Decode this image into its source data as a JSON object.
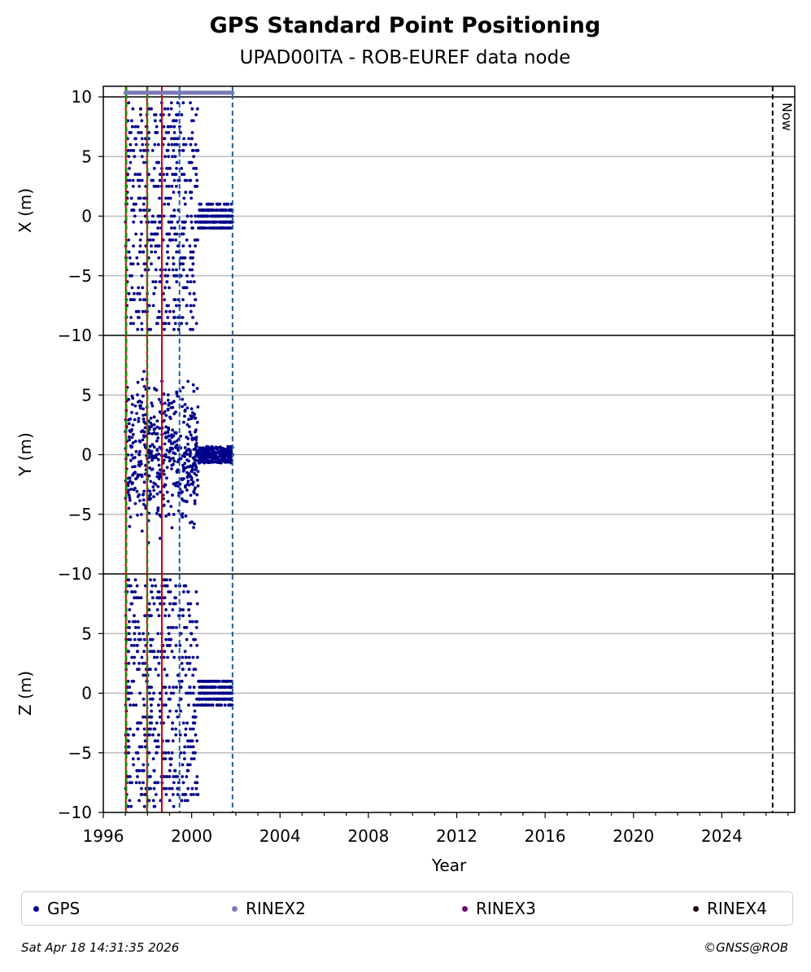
{
  "chart_data": {
    "type": "scatter",
    "title": "GPS Standard Point Positioning",
    "subtitle": "UPAD00ITA - ROB-EUREF data node",
    "xlabel": "Year",
    "xlim": [
      1996,
      2027.3
    ],
    "xticks": [
      1996,
      2000,
      2004,
      2008,
      2012,
      2016,
      2020,
      2024
    ],
    "panels": [
      {
        "name": "X",
        "ylabel": "X (m)",
        "ylim": [
          -10,
          10
        ],
        "yticks": [
          -10,
          -5,
          0,
          5,
          10
        ]
      },
      {
        "name": "Y",
        "ylabel": "Y (m)",
        "ylim": [
          -10,
          10
        ],
        "yticks": [
          -10,
          -5,
          0,
          5
        ]
      },
      {
        "name": "Z",
        "ylabel": "Z (m)",
        "ylim": [
          -10,
          10
        ],
        "yticks": [
          -10,
          -5,
          0,
          5
        ]
      }
    ],
    "grid": true,
    "legend_placement": "bottom",
    "series": [
      {
        "name": "GPS",
        "color": "#00008b",
        "segments": [
          {
            "x_start": 1997.0,
            "x_end": 2000.3,
            "spread": 9.5,
            "quantized": true,
            "y_spread": 5.0
          },
          {
            "x_start": 2000.3,
            "x_end": 2001.85,
            "spread": 1.0,
            "quantized": true,
            "y_spread": 0.7
          }
        ]
      },
      {
        "name": "RINEX2",
        "color": "#7b7bb8",
        "x_range": [
          1997.0,
          2001.85
        ],
        "y": 10.35
      },
      {
        "name": "RINEX3",
        "color": "#6b0a6b"
      },
      {
        "name": "RINEX4",
        "color": "#200010"
      }
    ],
    "vertical_lines": [
      {
        "x": 1997.02,
        "color": "#d00000",
        "style": "solid"
      },
      {
        "x": 1997.05,
        "color": "#00a000",
        "style": "dashed"
      },
      {
        "x": 1997.98,
        "color": "#d00000",
        "style": "solid"
      },
      {
        "x": 1998.0,
        "color": "#00a000",
        "style": "dashed"
      },
      {
        "x": 1998.65,
        "color": "#d00000",
        "style": "solid"
      },
      {
        "x": 1999.45,
        "color": "#1f5fa8",
        "style": "dashed"
      },
      {
        "x": 2001.85,
        "color": "#1f5fa8",
        "style": "dashed"
      },
      {
        "x": 2026.3,
        "color": "#000000",
        "style": "dashed",
        "label": "Now"
      }
    ]
  },
  "legend": {
    "items": [
      {
        "label": "GPS",
        "color": "#00008b"
      },
      {
        "label": "RINEX2",
        "color": "#7b7bb8"
      },
      {
        "label": "RINEX3",
        "color": "#6b0a6b"
      },
      {
        "label": "RINEX4",
        "color": "#200010"
      }
    ]
  },
  "footer": {
    "timestamp": "Sat Apr 18 14:31:35 2026",
    "copyright": "©GNSS@ROB"
  }
}
